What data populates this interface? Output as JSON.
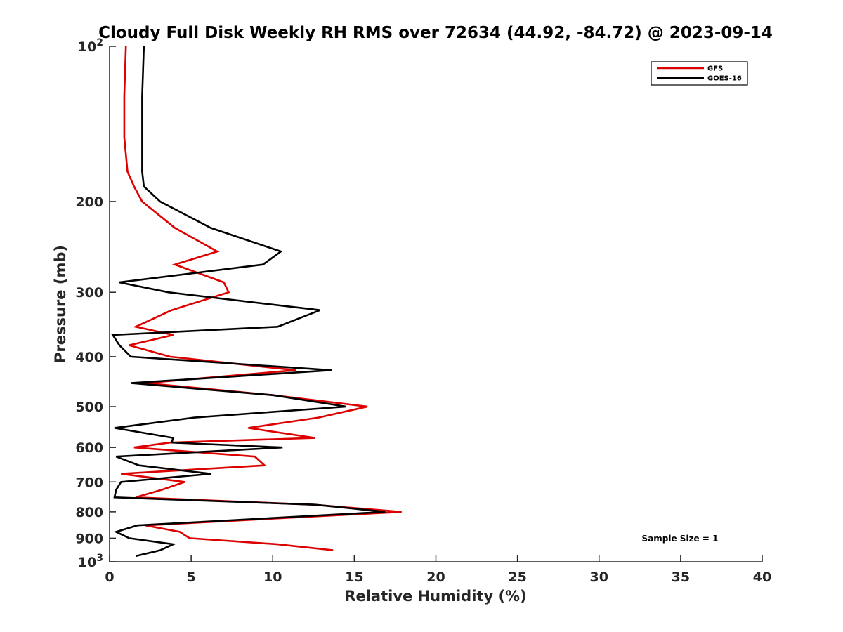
{
  "chart_data": {
    "type": "line",
    "title": "Cloudy Full Disk Weekly RH RMS over 72634 (44.92, -84.72) @ 2023-09-14",
    "xlabel": "Relative Humidity (%)",
    "ylabel": "Pressure (mb)",
    "xlim": [
      0,
      40
    ],
    "ylim": [
      100,
      1000
    ],
    "yscale": "log",
    "y_reversed": true,
    "grid": false,
    "legend_position": "top-right",
    "x_ticks": [
      "0",
      "5",
      "10",
      "15",
      "20",
      "25",
      "30",
      "35",
      "40"
    ],
    "y_ticks": [
      {
        "value": 100,
        "base": "10",
        "exp": "2"
      },
      {
        "value": 200,
        "label": "200"
      },
      {
        "value": 300,
        "label": "300"
      },
      {
        "value": 400,
        "label": "400"
      },
      {
        "value": 500,
        "label": "500"
      },
      {
        "value": 600,
        "label": "600"
      },
      {
        "value": 700,
        "label": "700"
      },
      {
        "value": 800,
        "label": "800"
      },
      {
        "value": 900,
        "label": "900"
      },
      {
        "value": 1000,
        "base": "10",
        "exp": "3"
      }
    ],
    "annotation": "Sample Size = 1",
    "series": [
      {
        "name": "GFS",
        "color": "#dd0000",
        "points": [
          [
            1.0,
            100
          ],
          [
            0.9,
            125
          ],
          [
            0.9,
            150
          ],
          [
            1.1,
            175
          ],
          [
            1.5,
            187
          ],
          [
            2.0,
            200
          ],
          [
            4.0,
            225
          ],
          [
            6.6,
            250
          ],
          [
            4.0,
            265
          ],
          [
            7.0,
            287
          ],
          [
            7.3,
            300
          ],
          [
            3.8,
            325
          ],
          [
            1.6,
            350
          ],
          [
            3.9,
            363
          ],
          [
            1.2,
            380
          ],
          [
            3.7,
            400
          ],
          [
            11.4,
            425
          ],
          [
            2.2,
            450
          ],
          [
            10.0,
            475
          ],
          [
            15.8,
            500
          ],
          [
            12.8,
            525
          ],
          [
            8.5,
            550
          ],
          [
            12.6,
            575
          ],
          [
            3.7,
            587
          ],
          [
            1.5,
            600
          ],
          [
            8.9,
            625
          ],
          [
            9.5,
            650
          ],
          [
            0.7,
            675
          ],
          [
            4.6,
            700
          ],
          [
            3.2,
            725
          ],
          [
            1.6,
            750
          ],
          [
            12.5,
            775
          ],
          [
            17.9,
            800
          ],
          [
            2.2,
            850
          ],
          [
            4.3,
            875
          ],
          [
            4.9,
            900
          ],
          [
            10.3,
            925
          ],
          [
            13.7,
            950
          ]
        ]
      },
      {
        "name": "GOES-16",
        "color": "#000000",
        "points": [
          [
            2.1,
            100
          ],
          [
            2.0,
            125
          ],
          [
            2.0,
            150
          ],
          [
            2.0,
            175
          ],
          [
            2.1,
            187
          ],
          [
            3.1,
            200
          ],
          [
            6.2,
            225
          ],
          [
            10.5,
            250
          ],
          [
            9.4,
            265
          ],
          [
            0.6,
            287
          ],
          [
            3.6,
            300
          ],
          [
            12.9,
            325
          ],
          [
            10.3,
            350
          ],
          [
            0.2,
            363
          ],
          [
            0.6,
            380
          ],
          [
            1.3,
            400
          ],
          [
            13.6,
            425
          ],
          [
            1.3,
            450
          ],
          [
            10.0,
            475
          ],
          [
            14.5,
            500
          ],
          [
            5.2,
            525
          ],
          [
            0.3,
            550
          ],
          [
            3.9,
            575
          ],
          [
            3.8,
            587
          ],
          [
            10.6,
            600
          ],
          [
            0.4,
            625
          ],
          [
            1.8,
            650
          ],
          [
            6.2,
            675
          ],
          [
            0.7,
            700
          ],
          [
            0.4,
            725
          ],
          [
            0.3,
            750
          ],
          [
            12.6,
            775
          ],
          [
            16.9,
            800
          ],
          [
            1.7,
            850
          ],
          [
            0.4,
            875
          ],
          [
            1.2,
            900
          ],
          [
            3.9,
            925
          ],
          [
            3.1,
            950
          ],
          [
            1.6,
            975
          ]
        ]
      }
    ]
  }
}
